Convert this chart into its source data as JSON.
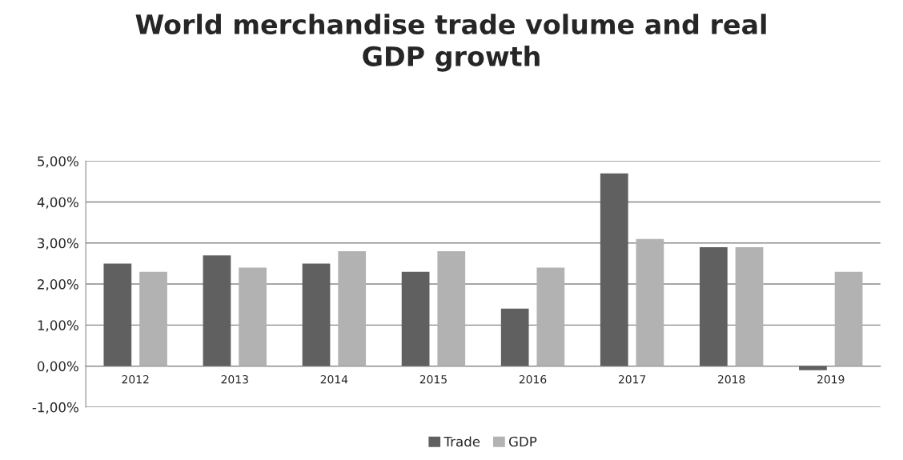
{
  "chart_data": {
    "type": "bar",
    "title": "World merchandise trade volume and real\nGDP growth",
    "categories": [
      "2012",
      "2013",
      "2014",
      "2015",
      "2016",
      "2017",
      "2018",
      "2019"
    ],
    "series": [
      {
        "name": "Trade",
        "color": "#606060",
        "values": [
          2.5,
          2.7,
          2.5,
          2.3,
          1.4,
          4.7,
          2.9,
          -0.1
        ]
      },
      {
        "name": "GDP",
        "color": "#b2b2b2",
        "values": [
          2.3,
          2.4,
          2.8,
          2.8,
          2.4,
          3.1,
          2.9,
          2.3
        ]
      }
    ],
    "ylim": [
      -1,
      5
    ],
    "yticks": [
      {
        "value": -1,
        "label": "-1,00%"
      },
      {
        "value": 0,
        "label": "0,00%"
      },
      {
        "value": 1,
        "label": "1,00%"
      },
      {
        "value": 2,
        "label": "2,00%"
      },
      {
        "value": 3,
        "label": "3,00%"
      },
      {
        "value": 4,
        "label": "4,00%"
      },
      {
        "value": 5,
        "label": "5,00%"
      }
    ],
    "grid": "y",
    "legend": "bottom"
  }
}
